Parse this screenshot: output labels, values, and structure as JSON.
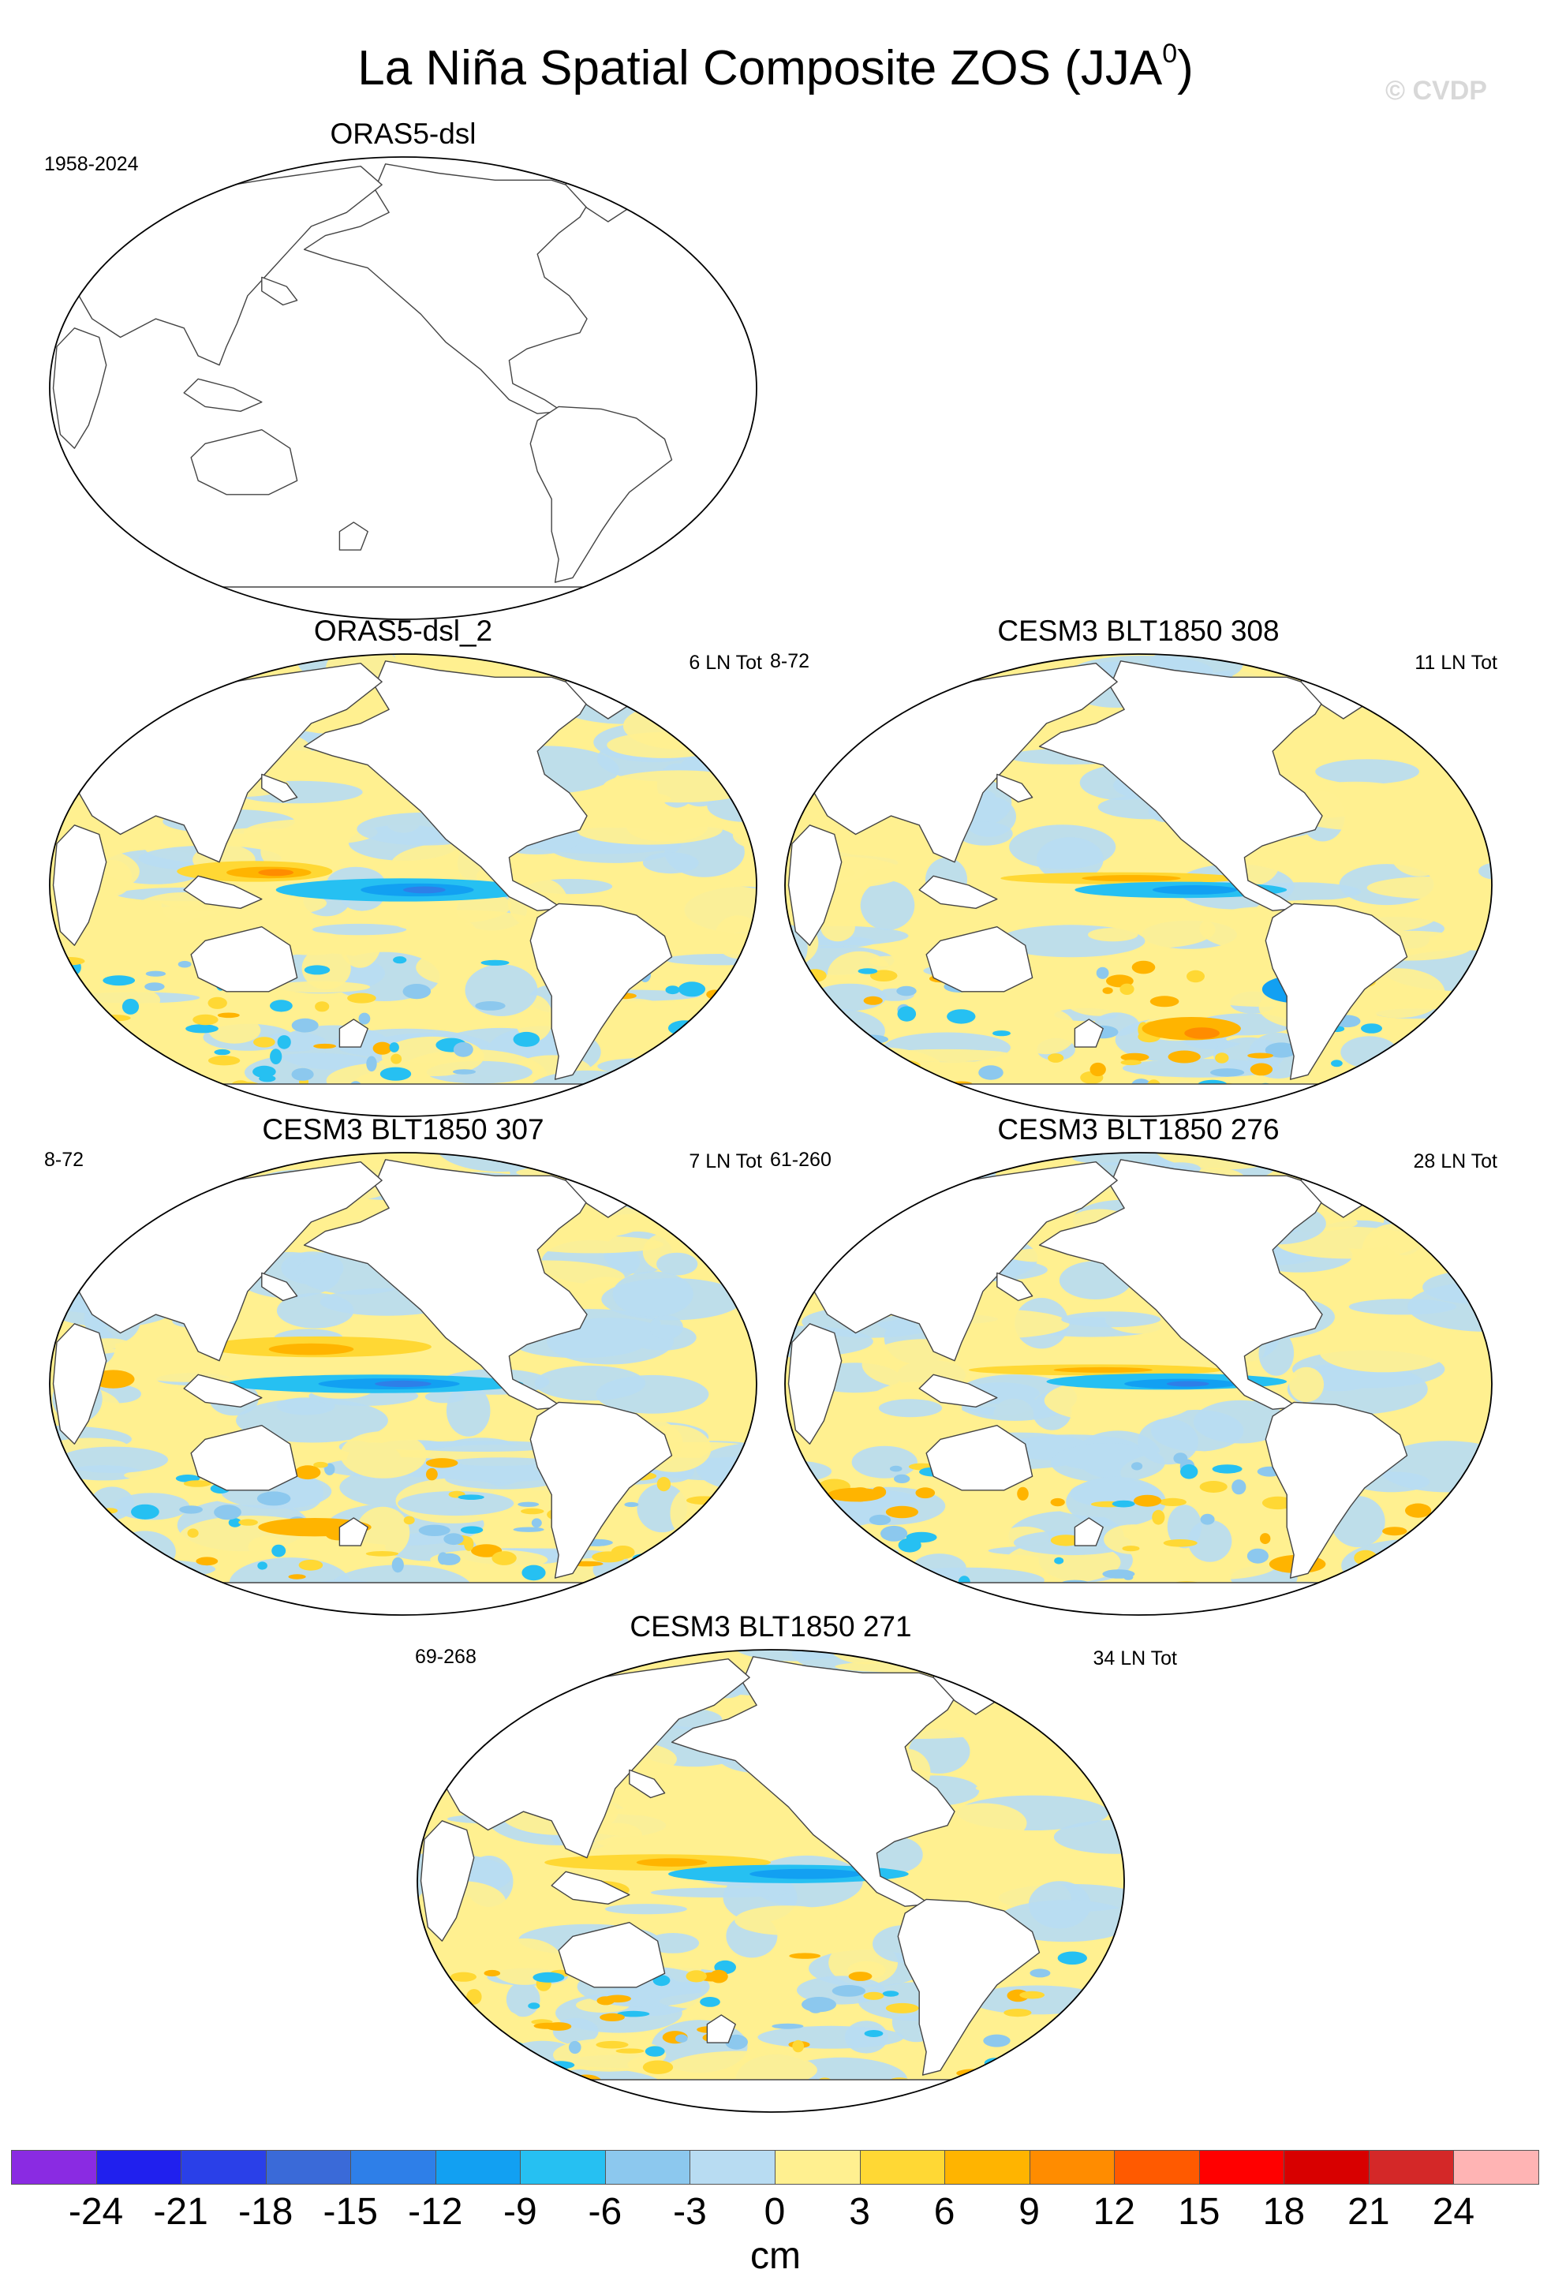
{
  "title": {
    "main": "La Niña Spatial Composite ZOS (JJA",
    "superscript": "0",
    "close": ")"
  },
  "watermark": "© CVDP",
  "panels": [
    {
      "id": "p0",
      "title": "ORAS5-dsl",
      "left_label": "1958-2024",
      "right_label": "",
      "filled": false,
      "style": "none"
    },
    {
      "id": "p1",
      "title": "ORAS5-dsl_2",
      "left_label": "",
      "right_label": "6 LN Tot",
      "filled": true,
      "style": "obs"
    },
    {
      "id": "p2",
      "title": "CESM3 BLT1850 308",
      "left_label": "8-72",
      "right_label": "11 LN Tot",
      "filled": true,
      "style": "m308"
    },
    {
      "id": "p3",
      "title": "CESM3 BLT1850 307",
      "left_label": "8-72",
      "right_label": "7 LN Tot",
      "filled": true,
      "style": "m307"
    },
    {
      "id": "p4",
      "title": "CESM3 BLT1850 276",
      "left_label": "61-260",
      "right_label": "28 LN Tot",
      "filled": true,
      "style": "m276"
    },
    {
      "id": "p5",
      "title": "CESM3 BLT1850 271",
      "left_label": "69-268",
      "right_label": "34 LN Tot",
      "filled": true,
      "style": "m271"
    }
  ],
  "colorbar": {
    "units": "cm",
    "levels": [
      -24,
      -21,
      -18,
      -15,
      -12,
      -9,
      -6,
      -3,
      0,
      3,
      6,
      9,
      12,
      15,
      18,
      21,
      24
    ],
    "colors": [
      "#8a2be2",
      "#2020ee",
      "#2a40e8",
      "#3a6ad8",
      "#2e7fe8",
      "#12a0f2",
      "#26c0f2",
      "#8cc8ee",
      "#b8dcf2",
      "#fff090",
      "#ffd834",
      "#ffb400",
      "#ff8c00",
      "#ff5a00",
      "#ff0000",
      "#d80000",
      "#d42828",
      "#ffb4b4"
    ],
    "tick_labels": [
      "-24",
      "-21",
      "-18",
      "-15",
      "-12",
      "-9",
      "-6",
      "-3",
      "0",
      "3",
      "6",
      "9",
      "12",
      "15",
      "18",
      "21",
      "24"
    ]
  }
}
